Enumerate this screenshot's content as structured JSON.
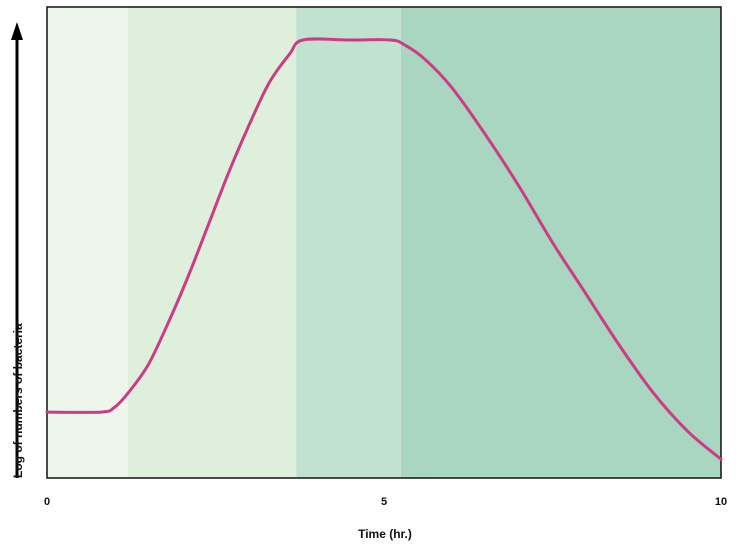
{
  "chart_data": {
    "type": "line",
    "title": "",
    "xlabel": "Time (hr.)",
    "ylabel": "Log of numbers of bacteria",
    "xlim": [
      0,
      10
    ],
    "ylim": [
      0,
      1
    ],
    "x_ticks": [
      {
        "value": 0,
        "label": "0"
      },
      {
        "value": 5,
        "label": "5"
      },
      {
        "value": 10,
        "label": "10"
      }
    ],
    "y_ticks": [],
    "grid": false,
    "legend": "none",
    "background_bands": [
      {
        "x_start": 0,
        "x_end": 1.2,
        "color": "#eef6ec"
      },
      {
        "x_start": 1.2,
        "x_end": 3.7,
        "color": "#deefdc"
      },
      {
        "x_start": 3.7,
        "x_end": 5.25,
        "color": "#c1e2d0"
      },
      {
        "x_start": 5.25,
        "x_end": 10,
        "color": "#a8d6c0"
      }
    ],
    "series": [
      {
        "color": "#cc3c86",
        "x": [
          0,
          0.8,
          1.0,
          1.2,
          1.5,
          1.8,
          2.1,
          2.4,
          2.7,
          3.0,
          3.3,
          3.6,
          3.8,
          4.5,
          5.1,
          5.3,
          5.6,
          6.0,
          6.5,
          7.0,
          7.5,
          8.0,
          8.5,
          9.0,
          9.5,
          10.0
        ],
        "y": [
          0.14,
          0.14,
          0.15,
          0.18,
          0.24,
          0.33,
          0.43,
          0.54,
          0.65,
          0.75,
          0.84,
          0.9,
          0.93,
          0.93,
          0.93,
          0.92,
          0.89,
          0.83,
          0.73,
          0.62,
          0.5,
          0.39,
          0.28,
          0.18,
          0.1,
          0.04
        ]
      }
    ]
  }
}
